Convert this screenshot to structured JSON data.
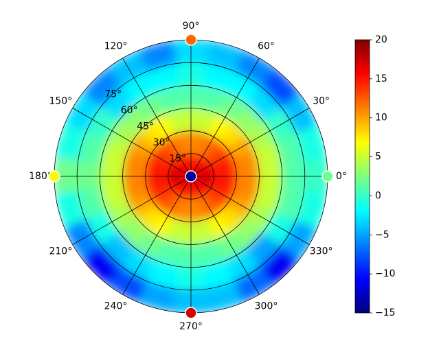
{
  "chart_data": {
    "type": "polar-heatmap",
    "rlim": [
      0,
      90
    ],
    "rticks": [
      {
        "value": 15,
        "label": "15°"
      },
      {
        "value": 30,
        "label": "30°"
      },
      {
        "value": 45,
        "label": "45°"
      },
      {
        "value": 60,
        "label": "60°"
      },
      {
        "value": 75,
        "label": "75°"
      }
    ],
    "thetaticks": [
      {
        "value": 0,
        "label": "0°"
      },
      {
        "value": 30,
        "label": "30°"
      },
      {
        "value": 60,
        "label": "60°"
      },
      {
        "value": 90,
        "label": "90°"
      },
      {
        "value": 120,
        "label": "120°"
      },
      {
        "value": 150,
        "label": "150°"
      },
      {
        "value": 180,
        "label": "180°"
      },
      {
        "value": 210,
        "label": "210°"
      },
      {
        "value": 240,
        "label": "240°"
      },
      {
        "value": 270,
        "label": "270°"
      },
      {
        "value": 300,
        "label": "300°"
      },
      {
        "value": 330,
        "label": "330°"
      }
    ],
    "grid": true,
    "colormap": [
      "#00007f",
      "#0000ff",
      "#007fff",
      "#00ffff",
      "#7fff7f",
      "#ffff00",
      "#ff7f00",
      "#ff0000",
      "#7f0000"
    ],
    "colorbar": {
      "lim": [
        -15,
        20
      ],
      "ticks": [
        {
          "value": -15,
          "label": "−15"
        },
        {
          "value": -10,
          "label": "−10"
        },
        {
          "value": -5,
          "label": "−5"
        },
        0,
        5,
        10,
        15,
        20
      ]
    },
    "heatmap": {
      "theta_bins": [
        -7.5,
        7.5,
        22.5,
        37.5,
        52.5,
        67.5,
        82.5,
        97.5,
        112.5,
        127.5,
        142.5,
        157.5,
        172.5,
        187.5,
        202.5,
        217.5,
        232.5,
        247.5,
        262.5,
        277.5,
        292.5,
        307.5,
        322.5,
        337.5,
        352.5
      ],
      "r_bins": [
        0,
        15,
        30,
        45,
        60,
        75,
        90
      ],
      "values": [
        [
          17,
          17,
          16,
          16,
          16,
          15,
          15,
          15,
          16,
          16,
          16,
          17,
          17,
          17,
          16,
          16,
          16,
          15,
          15,
          15,
          16,
          16,
          16,
          17
        ],
        [
          15,
          15,
          14,
          13,
          12,
          11,
          11,
          11,
          12,
          13,
          14,
          15,
          15,
          15,
          14,
          13,
          12,
          11,
          11,
          11,
          12,
          13,
          14,
          15
        ],
        [
          11,
          11,
          10,
          8,
          7,
          5,
          5,
          5,
          7,
          8,
          10,
          11,
          11,
          11,
          10,
          8,
          7,
          5,
          5,
          5,
          7,
          8,
          10,
          11
        ],
        [
          5,
          5,
          4,
          3,
          2,
          1,
          1,
          1,
          2,
          3,
          4,
          5,
          5,
          5,
          4,
          3,
          2,
          1,
          1,
          1,
          2,
          3,
          4,
          5
        ],
        [
          1,
          1,
          0,
          -3,
          -2,
          -2,
          -1,
          -2,
          -2,
          -3,
          0,
          1,
          2,
          1,
          -1,
          -4,
          -3,
          -2,
          -1,
          -2,
          -3,
          -5,
          -1,
          1
        ],
        [
          0,
          -1,
          -4,
          -8,
          -6,
          -4,
          -3,
          -6,
          -4,
          -6,
          -3,
          -1,
          2,
          -1,
          -6,
          -11,
          -8,
          -5,
          -4,
          -4,
          -7,
          -11,
          -5,
          -1
        ]
      ]
    },
    "markers": {
      "theta": [
        0,
        90,
        180,
        270,
        0
      ],
      "r": [
        90,
        90,
        90,
        90,
        0
      ],
      "values": [
        2,
        12,
        7,
        17,
        -14
      ]
    }
  }
}
